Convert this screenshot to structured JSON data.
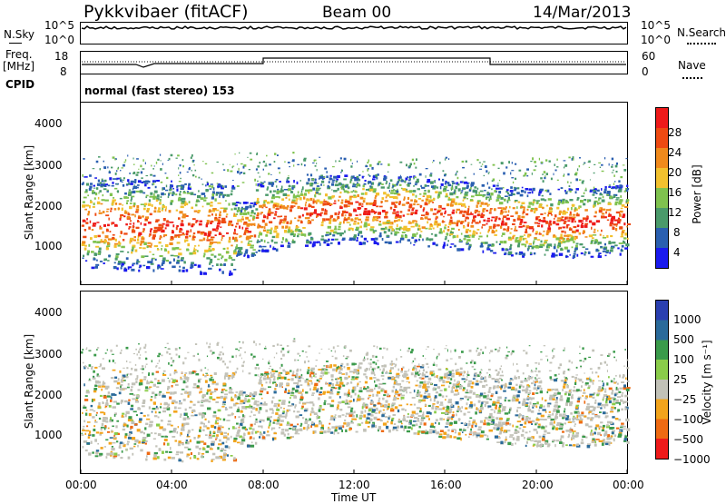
{
  "header": {
    "station": "Pykkvibaer (fitACF)",
    "beam": "Beam 00",
    "date": "14/Mar/2013"
  },
  "nsky_panel": {
    "left_label": "N.Sky",
    "right_label": "N.Search",
    "left_ticks": [
      "10^5",
      "10^0"
    ],
    "right_ticks": [
      "10^5",
      "10^0"
    ]
  },
  "freq_panel": {
    "left_label_1": "Freq.",
    "left_label_2": "[MHz]",
    "right_label": "Nave",
    "left_ticks": [
      "18",
      "8"
    ],
    "right_ticks": [
      "60",
      "0"
    ]
  },
  "cpid_panel": {
    "label": "CPID",
    "text": "normal (fast stereo) 153"
  },
  "chart_data": [
    {
      "type": "heatmap",
      "title": "",
      "ylabel": "Slant Range [km]",
      "ylim": [
        180,
        4600
      ],
      "y_ticks": [
        "1000",
        "2000",
        "3000",
        "4000"
      ],
      "colorbar_label": "Power [dB]",
      "colorbar_ticks": [
        "4",
        "8",
        "12",
        "16",
        "20",
        "24",
        "28"
      ],
      "colors": [
        "#1a1aee",
        "#2a5fb0",
        "#4a9a6a",
        "#7fc24e",
        "#f2c12e",
        "#f08a1c",
        "#ee4a12",
        "#ee1a1a"
      ]
    },
    {
      "type": "heatmap",
      "title": "",
      "ylabel": "Slant Range [km]",
      "ylim": [
        180,
        4600
      ],
      "y_ticks": [
        "1000",
        "2000",
        "3000",
        "4000"
      ],
      "colorbar_label": "Velocity [m s⁻¹]",
      "colorbar_ticks": [
        "1000",
        "500",
        "100",
        "25",
        "−25",
        "−100",
        "−500",
        "−1000"
      ],
      "colors": [
        "#2a3fb0",
        "#2a6a9a",
        "#3a9a4a",
        "#8acc4a",
        "#c2c2b8",
        "#f2a41c",
        "#ee6a12",
        "#ee1a1a"
      ]
    }
  ],
  "time_axis": {
    "xlabel": "Time UT",
    "ticks": [
      "00:00",
      "04:00",
      "08:00",
      "12:00",
      "16:00",
      "20:00",
      "00:00"
    ]
  }
}
